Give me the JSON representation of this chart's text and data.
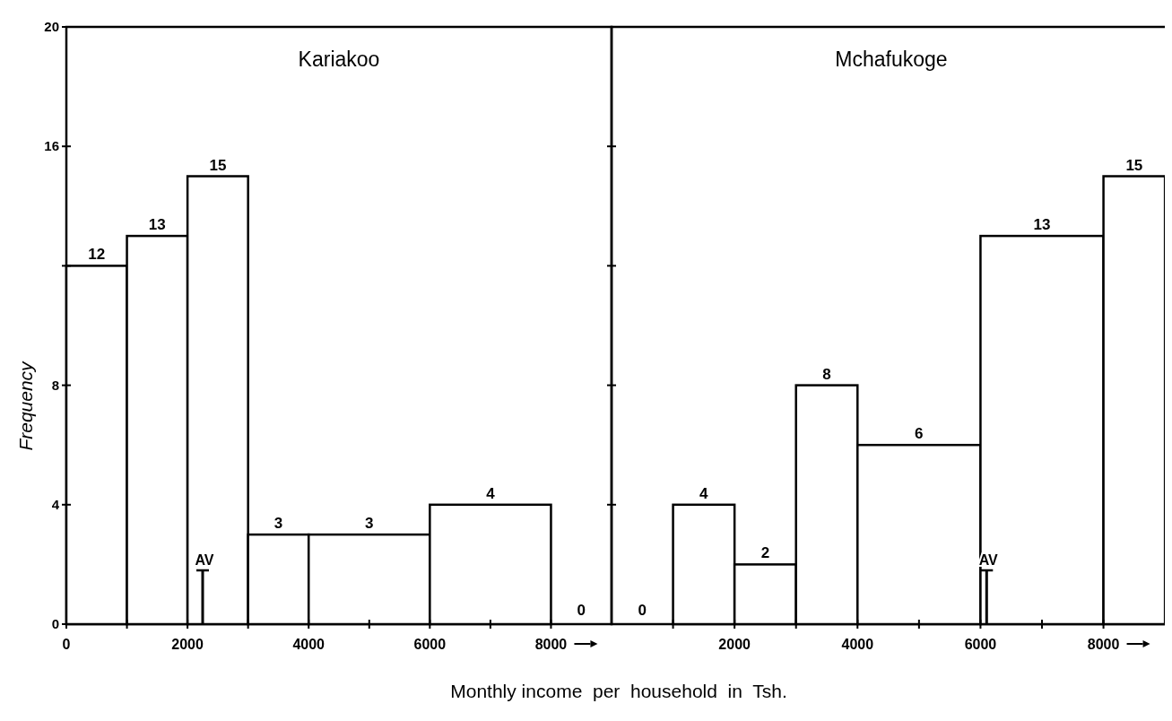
{
  "chart_data": [
    {
      "type": "histogram",
      "title": "Kariakoo",
      "ylabel": "Frequency",
      "xlabel": "Monthly income  per  household  in  Tsh.",
      "bins": [
        0,
        1000,
        2000,
        3000,
        4000,
        6000,
        8000
      ],
      "values": [
        12,
        13,
        15,
        3,
        3,
        4
      ],
      "color": "#ffffff",
      "data_labels": true,
      "xlim": [
        0,
        9000
      ],
      "ylim": [
        0,
        20
      ],
      "xticks": [
        0,
        {
          "value": 1000,
          "label": null
        },
        2000,
        {
          "value": 3000,
          "label": null
        },
        4000,
        {
          "value": 5000,
          "label": null
        },
        6000,
        {
          "value": 7000,
          "label": null
        },
        8000
      ],
      "yticks": [
        0,
        4,
        8,
        {
          "value": 12,
          "label": null
        },
        16,
        20
      ],
      "ref_lines": [
        {
          "axis": "x",
          "value": 2250,
          "label": "AV"
        }
      ],
      "annotations": [
        "0"
      ]
    },
    {
      "type": "histogram",
      "title": "Mchafukoge",
      "bins": [
        1000,
        2000,
        3000,
        4000,
        6000,
        8000,
        9000
      ],
      "values": [
        4,
        2,
        8,
        6,
        13,
        15
      ],
      "color": "#ffffff",
      "data_labels": true,
      "xlim": [
        0,
        9100
      ],
      "ylim": [
        0,
        20
      ],
      "xticks": [
        {
          "value": 1000,
          "label": null
        },
        2000,
        {
          "value": 3000,
          "label": null
        },
        4000,
        {
          "value": 5000,
          "label": null
        },
        6000,
        {
          "value": 7000,
          "label": null
        },
        8000
      ],
      "yticks": [
        0,
        4,
        8,
        {
          "value": 12,
          "label": null
        },
        16,
        20
      ],
      "ref_lines": [
        {
          "axis": "x",
          "value": 6100,
          "label": "AV"
        }
      ],
      "annotations": [
        "0"
      ],
      "tick_labels": "x"
    }
  ]
}
